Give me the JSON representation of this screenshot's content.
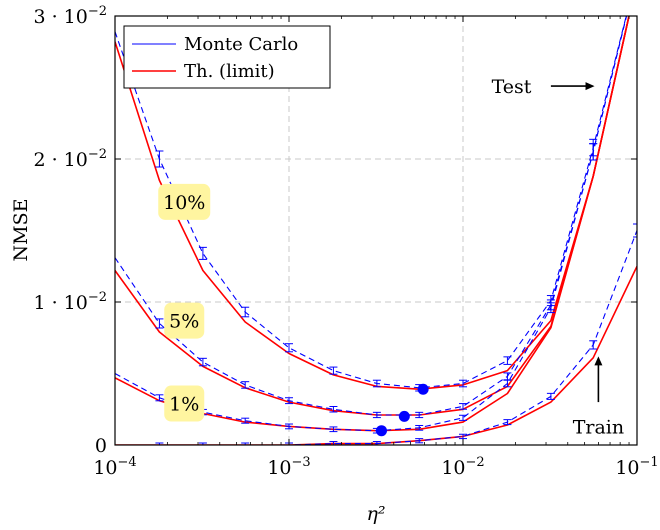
{
  "chart_data": {
    "type": "line",
    "xlabel": "η²",
    "ylabel": "NMSE",
    "xscale": "log",
    "xlim": [
      0.0001,
      0.1
    ],
    "ylim": [
      0,
      0.03
    ],
    "grid": true,
    "legend_position": "top-left",
    "x_ticks": [
      {
        "value": 0.0001,
        "mantissa": "10",
        "exp": "−4"
      },
      {
        "value": 0.001,
        "mantissa": "10",
        "exp": "−3"
      },
      {
        "value": 0.01,
        "mantissa": "10",
        "exp": "−2"
      },
      {
        "value": 0.1,
        "mantissa": "10",
        "exp": "−1"
      }
    ],
    "y_ticks": [
      {
        "value": 0,
        "label": "0",
        "exp": ""
      },
      {
        "value": 0.01,
        "label": "1 · 10",
        "exp": "−2"
      },
      {
        "value": 0.02,
        "label": "2 · 10",
        "exp": "−2"
      },
      {
        "value": 0.03,
        "label": "3 · 10",
        "exp": "−2"
      }
    ],
    "legend": [
      {
        "name": "Monte Carlo",
        "color": "#0000ff"
      },
      {
        "name": "Th. (limit)",
        "color": "#ff0000"
      }
    ],
    "x": [
      0.0001,
      0.00018,
      0.00032,
      0.00056,
      0.001,
      0.0018,
      0.0032,
      0.0056,
      0.01,
      0.018,
      0.032,
      0.056,
      0.1
    ],
    "series": [
      {
        "group": "10%",
        "set": "test",
        "kind": "theory",
        "color": "#ff0000",
        "values": [
          0.0282,
          0.0185,
          0.0122,
          0.0086,
          0.0064,
          0.0049,
          0.0041,
          0.0039,
          0.0042,
          0.0052,
          0.0087,
          0.0188,
          0.0325
        ]
      },
      {
        "group": "10%",
        "set": "test",
        "kind": "monte_carlo",
        "color": "#0000ff",
        "values": [
          0.0289,
          0.02,
          0.0134,
          0.0093,
          0.0068,
          0.0052,
          0.0043,
          0.004,
          0.0043,
          0.0059,
          0.0101,
          0.0208,
          0.033
        ]
      },
      {
        "group": "5%",
        "set": "test",
        "kind": "theory",
        "color": "#ff0000",
        "values": [
          0.0122,
          0.0079,
          0.0055,
          0.004,
          0.003,
          0.0024,
          0.0021,
          0.0021,
          0.0025,
          0.0041,
          0.0083,
          0.0188,
          0.0325
        ]
      },
      {
        "group": "5%",
        "set": "test",
        "kind": "monte_carlo",
        "color": "#0000ff",
        "values": [
          0.0131,
          0.0085,
          0.0058,
          0.0042,
          0.0031,
          0.0025,
          0.0021,
          0.0021,
          0.0027,
          0.0048,
          0.0098,
          0.0205,
          0.033
        ]
      },
      {
        "group": "1%",
        "set": "test",
        "kind": "theory",
        "color": "#ff0000",
        "values": [
          0.0047,
          0.0031,
          0.0022,
          0.0016,
          0.0013,
          0.0011,
          0.001,
          0.0011,
          0.0016,
          0.0036,
          0.0082,
          0.0188,
          0.0325
        ]
      },
      {
        "group": "1%",
        "set": "test",
        "kind": "monte_carlo",
        "color": "#0000ff",
        "values": [
          0.005,
          0.0033,
          0.0023,
          0.0017,
          0.0013,
          0.0011,
          0.001,
          0.0012,
          0.0019,
          0.0043,
          0.0096,
          0.0205,
          0.033
        ]
      },
      {
        "group": "all",
        "set": "train",
        "kind": "theory",
        "color": "#ff0000",
        "values": [
          0.0,
          0.0,
          0.0,
          0.0,
          0.0,
          0.0001,
          0.0001,
          0.0003,
          0.0006,
          0.0014,
          0.003,
          0.0061,
          0.0125
        ]
      },
      {
        "group": "all",
        "set": "train",
        "kind": "monte_carlo",
        "color": "#0000ff",
        "values": [
          0.0,
          0.0,
          0.0,
          0.0,
          0.0,
          0.0001,
          0.0001,
          0.0003,
          0.0006,
          0.0016,
          0.0034,
          0.007,
          0.015
        ]
      }
    ],
    "minimum_markers": [
      {
        "group": "10%",
        "x": 0.0059,
        "y": 0.0039,
        "color": "#0000ff"
      },
      {
        "group": "5%",
        "x": 0.0046,
        "y": 0.002,
        "color": "#0000ff"
      },
      {
        "group": "1%",
        "x": 0.0034,
        "y": 0.001,
        "color": "#0000ff"
      }
    ],
    "curve_labels": [
      {
        "text": "10%",
        "x": 0.00025,
        "y": 0.017
      },
      {
        "text": "5%",
        "x": 0.00025,
        "y": 0.0087
      },
      {
        "text": "1%",
        "x": 0.00025,
        "y": 0.0029
      }
    ],
    "annotations": [
      {
        "text": "Test",
        "x": 0.019,
        "y": 0.0251,
        "arrow_from": 0.032,
        "arrow_to": 0.057,
        "arrow_y": 0.0251
      },
      {
        "text": "Train",
        "x": 0.06,
        "y": 0.0013,
        "arrow_x": 0.06,
        "arrow_from": 0.003,
        "arrow_to": 0.0062
      }
    ],
    "label_box_color": "#fff5a0"
  }
}
